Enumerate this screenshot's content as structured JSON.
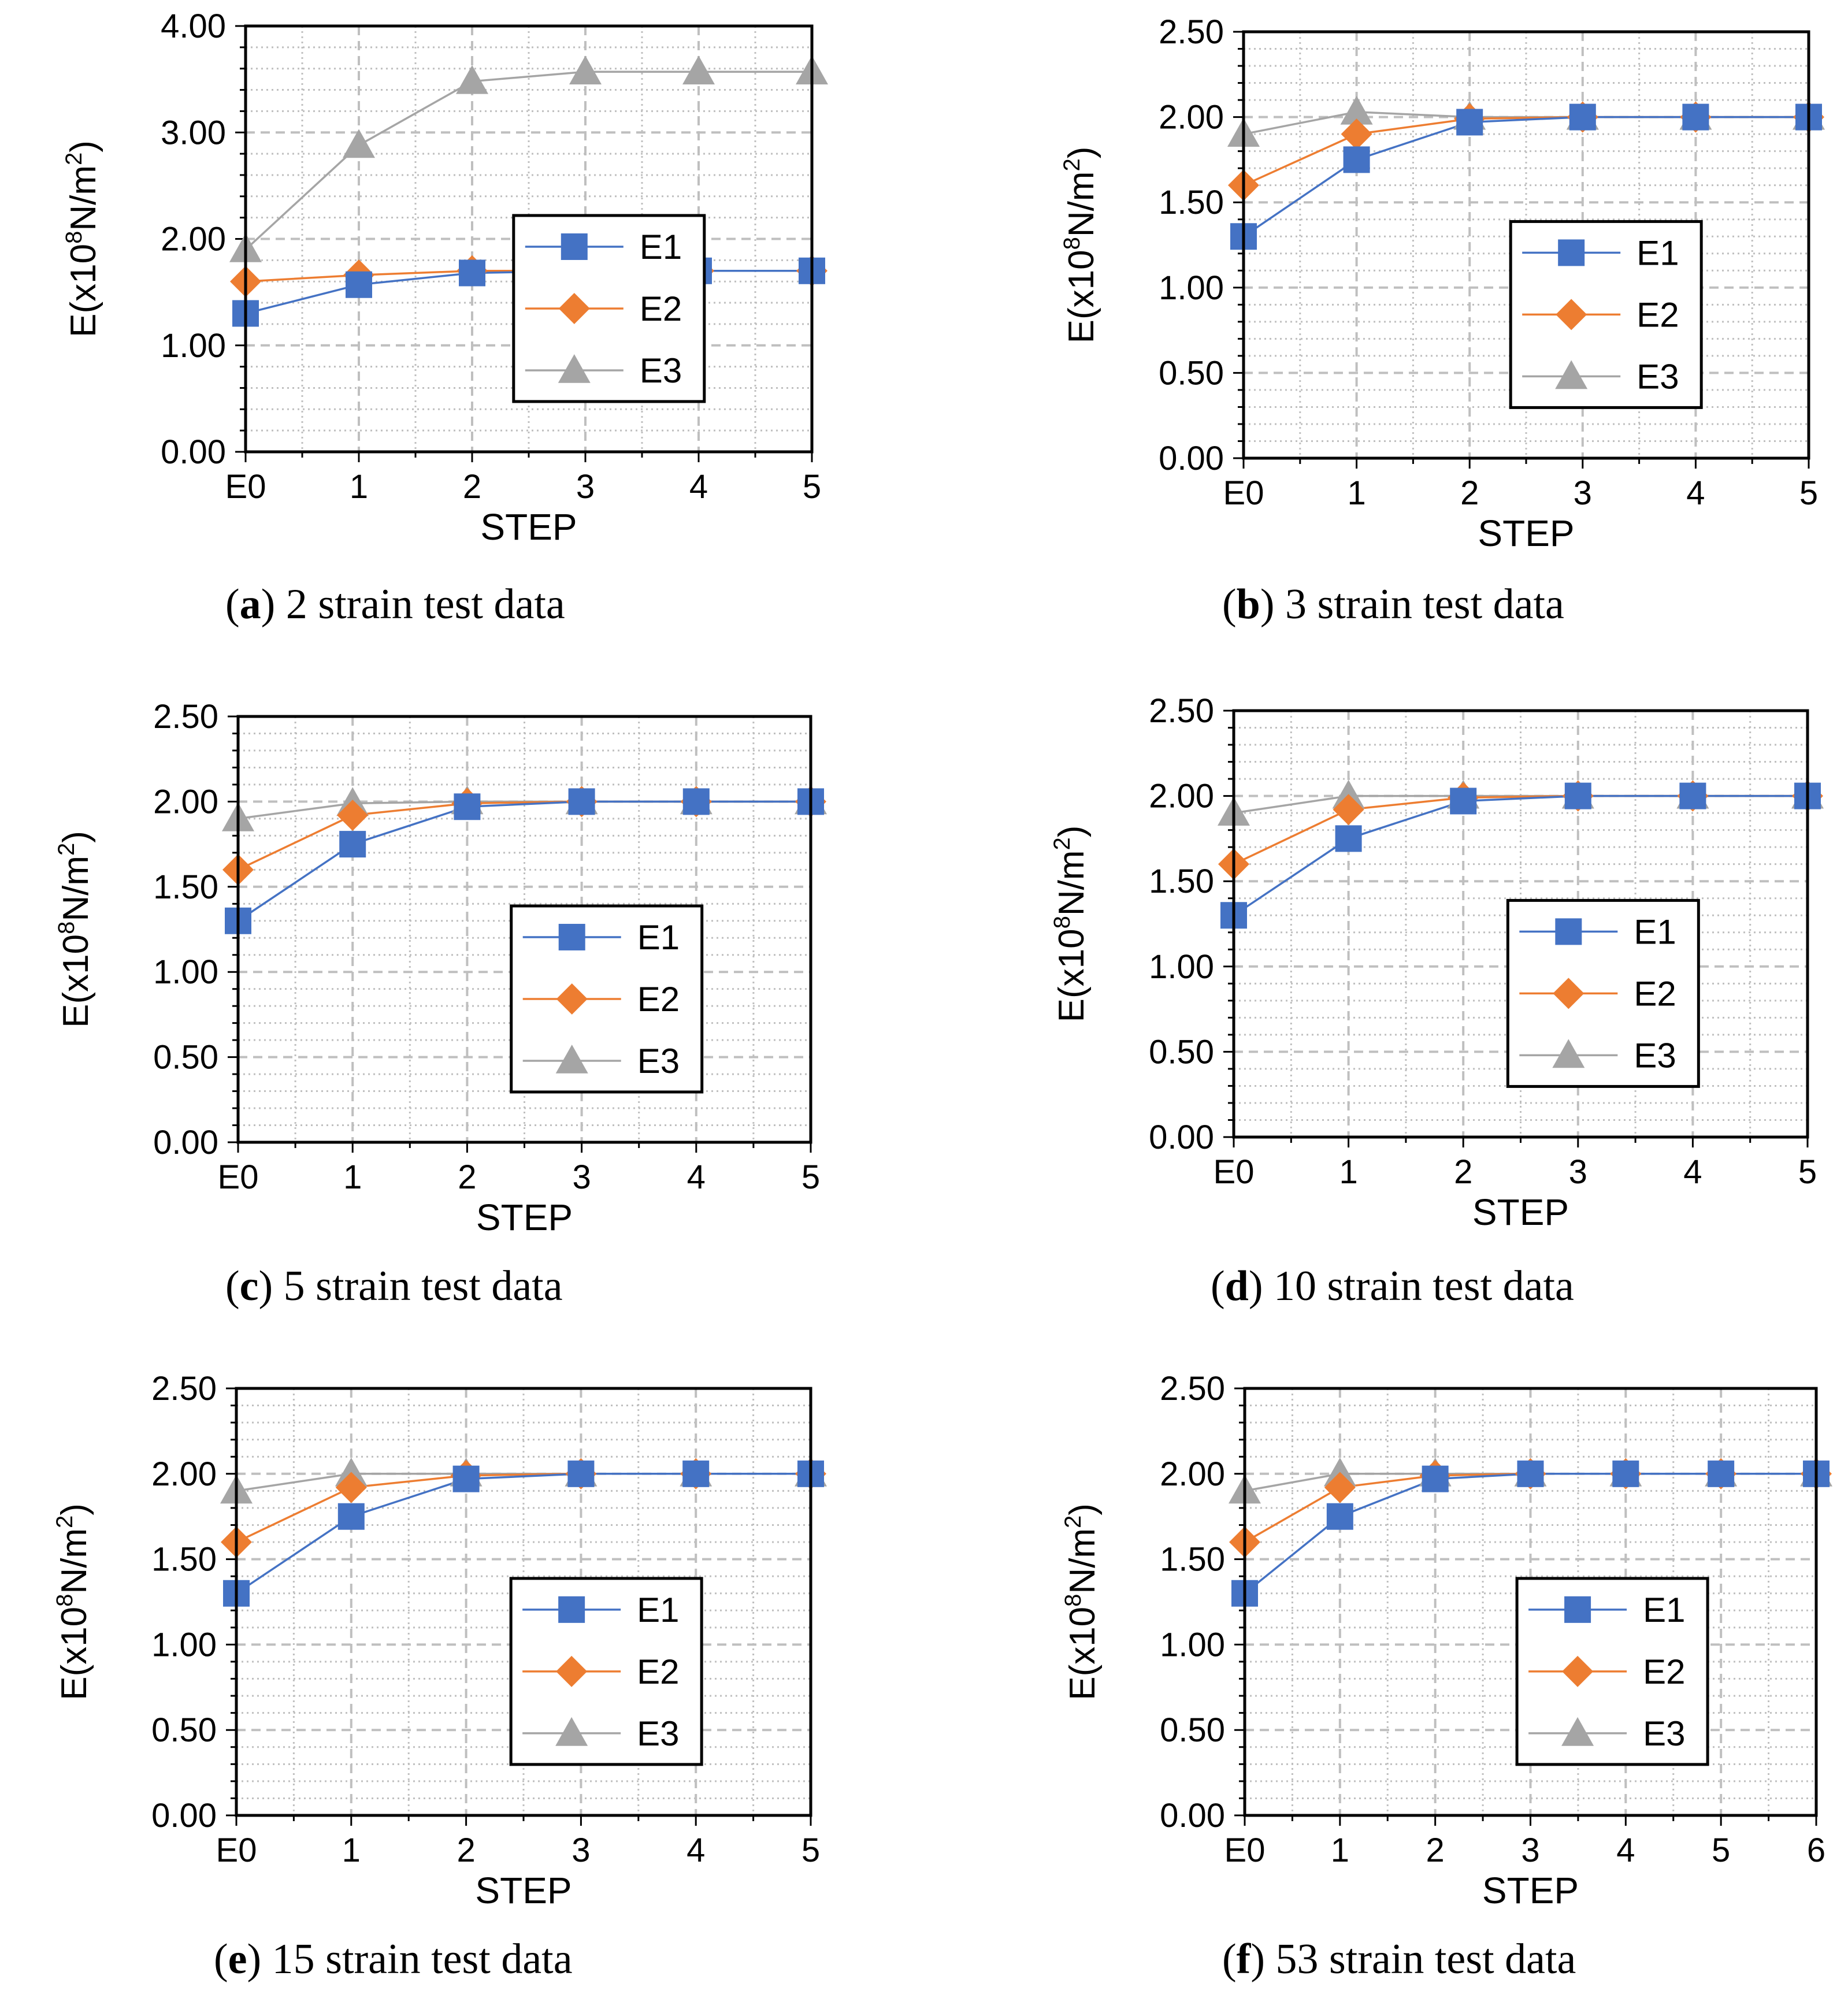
{
  "chart_data": [
    {
      "type": "line",
      "panel": "a",
      "caption_letter": "a",
      "caption_text": " 2 strain test data",
      "categories": [
        "E0",
        "1",
        "2",
        "3",
        "4",
        "5"
      ],
      "ylim": [
        0,
        4
      ],
      "y_ticks": [
        "0.00",
        "1.00",
        "2.00",
        "3.00",
        "4.00"
      ],
      "y_tick_values": [
        0,
        1,
        2,
        3,
        4
      ],
      "xlabel": "STEP",
      "ylabel": "E(x10",
      "ylabel_sup_8": "8",
      "ylabel_mid": "N/m",
      "ylabel_sup_2": "2",
      "ylabel_end": ")",
      "grid": true,
      "legend": "center-right",
      "series": [
        {
          "name": "E1",
          "marker": "square",
          "values": [
            1.3,
            1.57,
            1.68,
            1.7,
            1.7,
            1.7
          ]
        },
        {
          "name": "E2",
          "marker": "diamond",
          "values": [
            1.6,
            1.66,
            1.7,
            1.7,
            1.7,
            1.7
          ]
        },
        {
          "name": "E3",
          "marker": "triangle",
          "values": [
            1.9,
            2.88,
            3.48,
            3.57,
            3.57,
            3.57
          ]
        }
      ]
    },
    {
      "type": "line",
      "panel": "b",
      "caption_letter": "b",
      "caption_text": " 3 strain test data",
      "categories": [
        "E0",
        "1",
        "2",
        "3",
        "4",
        "5"
      ],
      "ylim": [
        0,
        2.5
      ],
      "y_ticks": [
        "0.00",
        "0.50",
        "1.00",
        "1.50",
        "2.00",
        "2.50"
      ],
      "y_tick_values": [
        0,
        0.5,
        1,
        1.5,
        2,
        2.5
      ],
      "xlabel": "STEP",
      "ylabel": "E(x10",
      "ylabel_sup_8": "8",
      "ylabel_mid": "N/m",
      "ylabel_sup_2": "2",
      "ylabel_end": ")",
      "grid": true,
      "legend": "center-right",
      "series": [
        {
          "name": "E1",
          "marker": "square",
          "values": [
            1.3,
            1.75,
            1.97,
            2.0,
            2.0,
            2.0
          ]
        },
        {
          "name": "E2",
          "marker": "diamond",
          "values": [
            1.6,
            1.9,
            1.99,
            2.0,
            2.0,
            2.0
          ]
        },
        {
          "name": "E3",
          "marker": "triangle",
          "values": [
            1.9,
            2.03,
            2.0,
            2.0,
            2.0,
            2.0
          ]
        }
      ]
    },
    {
      "type": "line",
      "panel": "c",
      "caption_letter": "c",
      "caption_text": " 5 strain test data",
      "categories": [
        "E0",
        "1",
        "2",
        "3",
        "4",
        "5"
      ],
      "ylim": [
        0,
        2.5
      ],
      "y_ticks": [
        "0.00",
        "0.50",
        "1.00",
        "1.50",
        "2.00",
        "2.50"
      ],
      "y_tick_values": [
        0,
        0.5,
        1,
        1.5,
        2,
        2.5
      ],
      "xlabel": "STEP",
      "ylabel": "E(x10",
      "ylabel_sup_8": "8",
      "ylabel_mid": "N/m",
      "ylabel_sup_2": "2",
      "ylabel_end": ")",
      "grid": true,
      "legend": "center-right",
      "series": [
        {
          "name": "E1",
          "marker": "square",
          "values": [
            1.3,
            1.75,
            1.97,
            2.0,
            2.0,
            2.0
          ]
        },
        {
          "name": "E2",
          "marker": "diamond",
          "values": [
            1.6,
            1.92,
            1.99,
            2.0,
            2.0,
            2.0
          ]
        },
        {
          "name": "E3",
          "marker": "triangle",
          "values": [
            1.9,
            1.99,
            2.0,
            2.0,
            2.0,
            2.0
          ]
        }
      ]
    },
    {
      "type": "line",
      "panel": "d",
      "caption_letter": "d",
      "caption_text": " 10 strain test data",
      "categories": [
        "E0",
        "1",
        "2",
        "3",
        "4",
        "5"
      ],
      "ylim": [
        0,
        2.5
      ],
      "y_ticks": [
        "0.00",
        "0.50",
        "1.00",
        "1.50",
        "2.00",
        "2.50"
      ],
      "y_tick_values": [
        0,
        0.5,
        1,
        1.5,
        2,
        2.5
      ],
      "xlabel": "STEP",
      "ylabel": "E(x10",
      "ylabel_sup_8": "8",
      "ylabel_mid": "N/m",
      "ylabel_sup_2": "2",
      "ylabel_end": ")",
      "grid": true,
      "legend": "center-right",
      "series": [
        {
          "name": "E1",
          "marker": "square",
          "values": [
            1.3,
            1.75,
            1.97,
            2.0,
            2.0,
            2.0
          ]
        },
        {
          "name": "E2",
          "marker": "diamond",
          "values": [
            1.6,
            1.92,
            1.99,
            2.0,
            2.0,
            2.0
          ]
        },
        {
          "name": "E3",
          "marker": "triangle",
          "values": [
            1.9,
            2.0,
            2.0,
            2.0,
            2.0,
            2.0
          ]
        }
      ]
    },
    {
      "type": "line",
      "panel": "e",
      "caption_letter": "e",
      "caption_text": " 15 strain test data",
      "categories": [
        "E0",
        "1",
        "2",
        "3",
        "4",
        "5"
      ],
      "ylim": [
        0,
        2.5
      ],
      "y_ticks": [
        "0.00",
        "0.50",
        "1.00",
        "1.50",
        "2.00",
        "2.50"
      ],
      "y_tick_values": [
        0,
        0.5,
        1,
        1.5,
        2,
        2.5
      ],
      "xlabel": "STEP",
      "ylabel": "E(x10",
      "ylabel_sup_8": "8",
      "ylabel_mid": "N/m",
      "ylabel_sup_2": "2",
      "ylabel_end": ")",
      "grid": true,
      "legend": "center-right",
      "series": [
        {
          "name": "E1",
          "marker": "square",
          "values": [
            1.3,
            1.75,
            1.97,
            2.0,
            2.0,
            2.0
          ]
        },
        {
          "name": "E2",
          "marker": "diamond",
          "values": [
            1.6,
            1.92,
            1.99,
            2.0,
            2.0,
            2.0
          ]
        },
        {
          "name": "E3",
          "marker": "triangle",
          "values": [
            1.9,
            2.0,
            2.0,
            2.0,
            2.0,
            2.0
          ]
        }
      ]
    },
    {
      "type": "line",
      "panel": "f",
      "caption_letter": "f",
      "caption_text": " 53 strain test data",
      "categories": [
        "E0",
        "1",
        "2",
        "3",
        "4",
        "5",
        "6"
      ],
      "ylim": [
        0,
        2.5
      ],
      "y_ticks": [
        "0.00",
        "0.50",
        "1.00",
        "1.50",
        "2.00",
        "2.50"
      ],
      "y_tick_values": [
        0,
        0.5,
        1,
        1.5,
        2,
        2.5
      ],
      "xlabel": "STEP",
      "ylabel": "E(x10",
      "ylabel_sup_8": "8",
      "ylabel_mid": "N/m",
      "ylabel_sup_2": "2",
      "ylabel_end": ")",
      "grid": true,
      "legend": "center-right",
      "series": [
        {
          "name": "E1",
          "marker": "square",
          "values": [
            1.3,
            1.75,
            1.97,
            2.0,
            2.0,
            2.0,
            2.0
          ]
        },
        {
          "name": "E2",
          "marker": "diamond",
          "values": [
            1.6,
            1.92,
            1.99,
            2.0,
            2.0,
            2.0,
            2.0
          ]
        },
        {
          "name": "E3",
          "marker": "triangle",
          "values": [
            1.9,
            2.0,
            2.0,
            2.0,
            2.0,
            2.0,
            2.0
          ]
        }
      ]
    }
  ],
  "colors": {
    "E1": "#4472C4",
    "E2": "#ED7D31",
    "E3": "#A5A5A5",
    "grid": "#BFBFBF",
    "axis": "#000000"
  }
}
